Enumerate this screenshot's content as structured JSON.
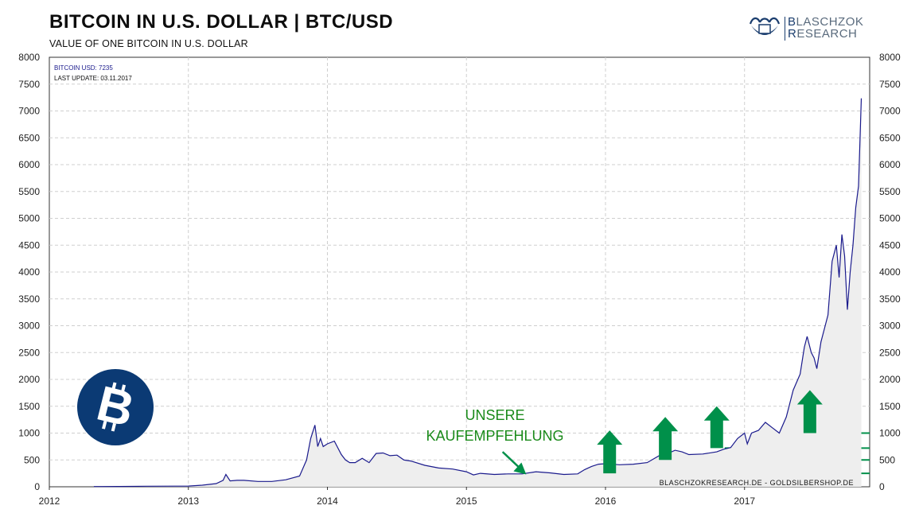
{
  "header": {
    "title": "BITCOIN  IN  U.S. DOLLAR  |  BTC/USD",
    "subtitle": "VALUE OF ONE BITCOIN IN U.S. DOLLAR"
  },
  "logo": {
    "line1_first": "B",
    "line1_rest": "LASCHZOK",
    "line2_first": "R",
    "line2_rest": "ESEARCH",
    "icon": "bull-bear-logo-icon"
  },
  "legend": {
    "series_label": "BITCOIN USD: 7235",
    "last_update": "LAST UPDATE: 03.11.2017"
  },
  "annotation": {
    "line1": "UNSERE",
    "line2": "KAUFEMPFEHLUNG",
    "color": "#1a8a1a"
  },
  "footer_credit": "BLASCHZOKRESEARCH.DE  -  GOLDSILBERSHOP.DE",
  "colors": {
    "line": "#1a1a8c",
    "area": "#eeeeee",
    "green": "#00904a",
    "bitcoin_circle": "#0b3a74"
  },
  "bitcoin_icon": "bitcoin-logo-icon",
  "chart_data": {
    "type": "area",
    "xlim": [
      2012,
      2017.9
    ],
    "ylim": [
      0,
      8000
    ],
    "x_ticks": [
      "2012",
      "2013",
      "2014",
      "2015",
      "2016",
      "2017"
    ],
    "y_ticks": [
      0,
      500,
      1000,
      1500,
      2000,
      2500,
      3000,
      3500,
      4000,
      4500,
      5000,
      5500,
      6000,
      6500,
      7000,
      7500,
      8000
    ],
    "grid": true,
    "series": [
      {
        "name": "BITCOIN USD",
        "x": [
          2012.32,
          2012.5,
          2012.7,
          2012.9,
          2013.0,
          2013.1,
          2013.2,
          2013.25,
          2013.27,
          2013.3,
          2013.35,
          2013.4,
          2013.5,
          2013.6,
          2013.7,
          2013.8,
          2013.85,
          2013.88,
          2013.91,
          2013.93,
          2013.95,
          2013.97,
          2014.0,
          2014.05,
          2014.1,
          2014.13,
          2014.16,
          2014.2,
          2014.25,
          2014.3,
          2014.35,
          2014.4,
          2014.45,
          2014.5,
          2014.55,
          2014.6,
          2014.7,
          2014.8,
          2014.9,
          2015.0,
          2015.05,
          2015.1,
          2015.2,
          2015.3,
          2015.4,
          2015.5,
          2015.6,
          2015.7,
          2015.8,
          2015.85,
          2015.9,
          2015.95,
          2016.0,
          2016.1,
          2016.2,
          2016.3,
          2016.4,
          2016.45,
          2016.5,
          2016.55,
          2016.6,
          2016.7,
          2016.8,
          2016.85,
          2016.9,
          2016.95,
          2017.0,
          2017.02,
          2017.05,
          2017.1,
          2017.15,
          2017.2,
          2017.25,
          2017.3,
          2017.35,
          2017.4,
          2017.43,
          2017.45,
          2017.48,
          2017.5,
          2017.52,
          2017.55,
          2017.58,
          2017.6,
          2017.63,
          2017.66,
          2017.68,
          2017.7,
          2017.72,
          2017.74,
          2017.76,
          2017.78,
          2017.8,
          2017.82,
          2017.84
        ],
        "values": [
          5,
          6,
          10,
          12,
          14,
          30,
          60,
          120,
          230,
          110,
          120,
          120,
          100,
          100,
          130,
          200,
          500,
          900,
          1150,
          750,
          900,
          750,
          800,
          850,
          600,
          500,
          450,
          450,
          530,
          450,
          620,
          630,
          580,
          590,
          500,
          480,
          400,
          350,
          330,
          280,
          220,
          250,
          230,
          240,
          240,
          280,
          260,
          230,
          240,
          320,
          380,
          420,
          430,
          410,
          420,
          450,
          600,
          620,
          680,
          650,
          600,
          610,
          650,
          700,
          730,
          900,
          1000,
          800,
          1000,
          1050,
          1200,
          1100,
          1000,
          1300,
          1800,
          2100,
          2600,
          2800,
          2500,
          2400,
          2200,
          2700,
          3000,
          3200,
          4200,
          4500,
          3900,
          4700,
          4300,
          3300,
          4000,
          4500,
          5200,
          5600,
          7235
        ]
      }
    ],
    "threshold_lines": [
      250,
      500,
      720,
      1000
    ],
    "arrows": [
      {
        "x": 2016.03,
        "from": 250,
        "to": 1050
      },
      {
        "x": 2016.43,
        "from": 500,
        "to": 1300
      },
      {
        "x": 2016.8,
        "from": 720,
        "to": 1500
      },
      {
        "x": 2017.47,
        "from": 1000,
        "to": 1800
      }
    ],
    "annotation_arrow": {
      "from": [
        2015.26,
        650
      ],
      "to": [
        2015.43,
        230
      ]
    }
  }
}
